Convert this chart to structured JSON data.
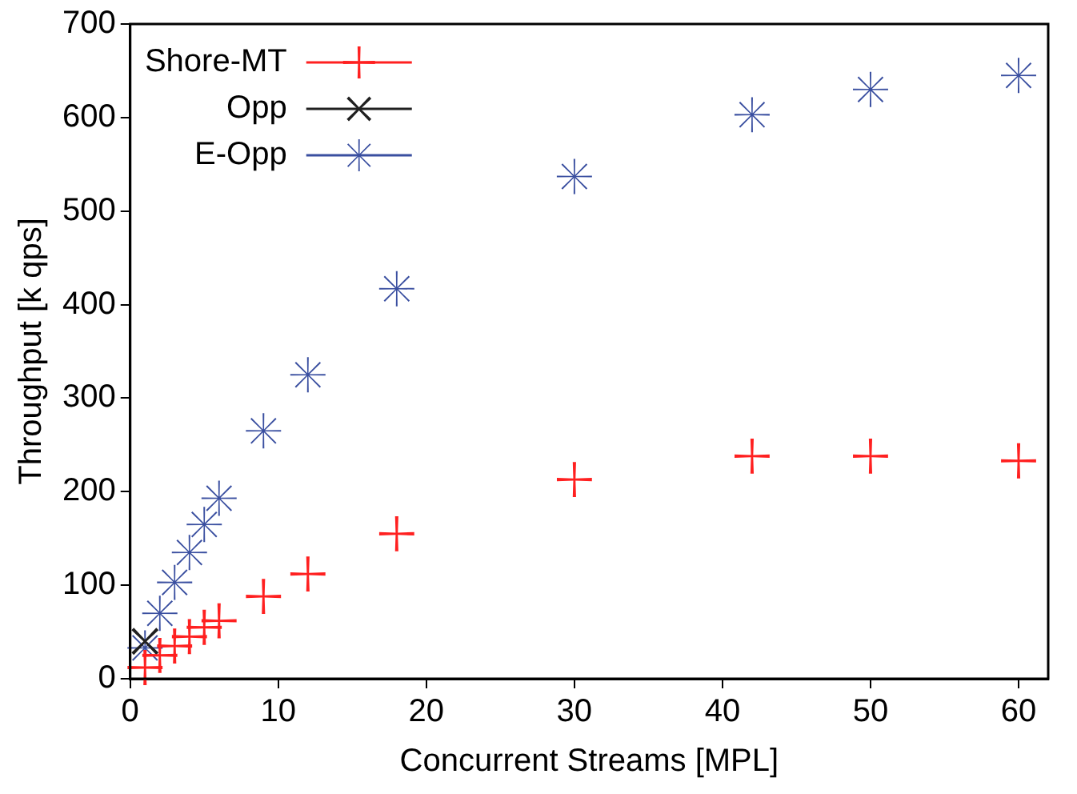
{
  "chart_data": {
    "type": "scatter",
    "xlabel": "Concurrent Streams [MPL]",
    "ylabel": "Throughput [k qps]",
    "xlim": [
      0,
      62
    ],
    "xticks": [
      0,
      10,
      20,
      30,
      40,
      50,
      60
    ],
    "ylim": [
      0,
      700
    ],
    "yticks": [
      0,
      100,
      200,
      300,
      400,
      500,
      600,
      700
    ],
    "grid": false,
    "legend": "top left",
    "x": [
      1,
      2,
      3,
      4,
      5,
      6,
      9,
      12,
      18,
      30,
      42,
      50,
      60
    ],
    "series": [
      {
        "name": "Shore-MT",
        "color": "#ff2020",
        "marker": "cross",
        "values": [
          12,
          25,
          35,
          45,
          55,
          62,
          88,
          112,
          155,
          213,
          238,
          238,
          233
        ]
      },
      {
        "name": "Opp",
        "color": "#202020",
        "values": [
          40,
          null,
          null,
          null,
          null,
          null,
          null,
          null,
          null,
          null,
          null,
          null,
          null
        ]
      },
      {
        "name": "E-Opp",
        "color": "#3a4fa0",
        "marker": "star",
        "values": [
          33,
          70,
          103,
          135,
          165,
          193,
          265,
          325,
          417,
          537,
          603,
          630,
          645
        ]
      }
    ]
  }
}
